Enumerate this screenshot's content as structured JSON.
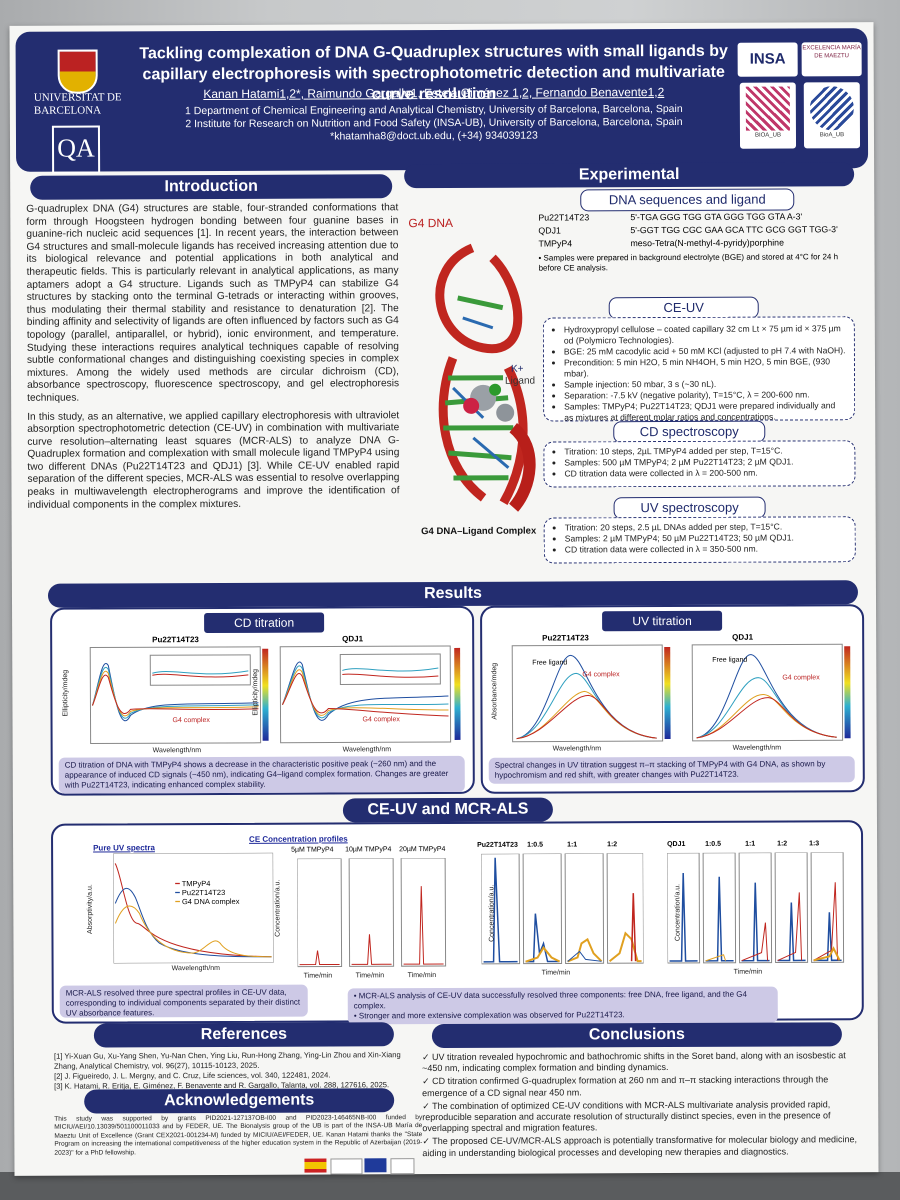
{
  "header": {
    "university": "UNIVERSITAT DE BARCELONA",
    "title": "Tackling complexation of DNA G-Quadruplex structures with small ligands by capillary electrophoresis with spectrophotometric detection and multivariate curve resolution",
    "authors": "Kanan Hatami1,2*, Raimundo Gargallo1, Estela Giménez 1,2, Fernando Benavente1,2",
    "affiliation1": "1 Department of Chemical Engineering and Analytical Chemistry, University of Barcelona, Barcelona, Spain",
    "affiliation2": "2 Institute for Research on Nutrition and Food Safety (INSA-UB), University of Barcelona, Barcelona, Spain",
    "contact": "*khatamha8@doct.ub.edu, (+34) 934039123",
    "logo_insa": "INSA",
    "logo_maeztu": "EXCELENCIA MARÍA DE MAEZTU",
    "qr1": "BIOA_UB",
    "qr2": "BioA_UB"
  },
  "intro": {
    "title": "Introduction",
    "p1": "G-quadruplex DNA (G4) structures are stable, four-stranded conformations that form through Hoogsteen hydrogen bonding between four guanine bases in guanine-rich nucleic acid sequences [1]. In recent years, the interaction between G4 structures and small-molecule ligands has received increasing attention due to its biological relevance and potential applications in both analytical and therapeutic fields. This is particularly relevant in analytical applications, as many aptamers adopt a G4 structure. Ligands such as TMPyP4 can stabilize G4 structures by stacking onto the terminal G-tetrads or interacting within grooves, thus modulating their thermal stability and resistance to denaturation [2]. The binding affinity and selectivity of ligands are often influenced by factors such as G4 topology (parallel, antiparallel, or hybrid), ionic environment, and temperature. Studying these interactions requires analytical techniques capable of resolving subtle conformational changes and distinguishing coexisting species in complex mixtures. Among the widely used methods are circular dichroism (CD), absorbance spectroscopy, fluorescence spectroscopy, and gel electrophoresis techniques.",
    "p2": "In this study, as an alternative, we applied capillary electrophoresis with ultraviolet absorption spectrophotometric detection (CE-UV) in combination with multivariate curve resolution–alternating least squares (MCR-ALS) to analyze DNA G-Quadruplex formation and complexation with small molecule ligand TMPyP4 using two different DNAs (Pu22T14T23 and QDJ1) [3]. While CE-UV enabled rapid separation of the different species, MCR-ALS was essential to resolve overlapping peaks in multiwavelength electropherograms and improve the identification of individual components in the complex mixtures.",
    "g4_label": "G4 DNA",
    "k_label": "K+",
    "ligand_label": "Ligand",
    "complex_caption": "G4 DNA–Ligand Complex"
  },
  "experimental": {
    "title": "Experimental",
    "dna": {
      "title": "DNA sequences and ligand",
      "rows": [
        {
          "name": "Pu22T14T23",
          "seq": "5'-TGA GGG TGG GTA GGG TGG GTA A-3'"
        },
        {
          "name": "QDJ1",
          "seq": "5'-GGT TGG CGC GAA GCA TTC GCG GGT TGG-3'"
        },
        {
          "name": "TMPyP4",
          "seq": "meso-Tetra(N-methyl-4-pyridy)porphine"
        }
      ],
      "note": "Samples were prepared in background electrolyte (BGE) and stored at 4°C for 24 h before CE analysis."
    },
    "ceuv": {
      "title": "CE-UV",
      "items": [
        "Hydroxypropyl cellulose – coated capillary 32 cm Lt × 75 µm id × 375 µm od (Polymicro Technologies).",
        "BGE: 25 mM cacodylic acid + 50 mM KCl (adjusted to pH 7.4 with NaOH).",
        "Precondition: 5 min H2O, 5 min NH4OH, 5 min H2O, 5 min BGE, (930 mbar).",
        "Sample injection: 50 mbar, 3 s (~30 nL).",
        "Separation: -7.5 kV (negative polarity), T=15°C, λ = 200-600 nm.",
        "Samples: TMPyP4; Pu22T14T23; QDJ1 were prepared individually and as mixtures at different molar ratios and concentrations."
      ]
    },
    "cd": {
      "title": "CD spectroscopy",
      "items": [
        "Titration: 10 steps, 2µL TMPyP4 added per step, T=15°C.",
        "Samples: 500 µM TMPyP4; 2 µM Pu22T14T23; 2 µM QDJ1.",
        "CD titration data were collected in λ = 200-500 nm."
      ]
    },
    "uv": {
      "title": "UV spectroscopy",
      "items": [
        "Titration: 20 steps, 2.5 µL DNAs added per step, T=15°C.",
        "Samples: 2 µM TMPyP4; 50 µM Pu22T14T23; 50 µM QDJ1.",
        "CD titration data were collected in λ = 350-500 nm."
      ]
    }
  },
  "results": {
    "title": "Results",
    "cd_title": "CD titration",
    "cd_plot1": "Pu22T14T23",
    "cd_plot2": "QDJ1",
    "cd_ylabel": "Ellipticity/mdeg",
    "cd_xlabel": "Wavelength/nm",
    "cd_complex": "G4 complex",
    "cd_caption": "CD titration of DNA with TMPyP4 shows a decrease in the characteristic positive peak (~260 nm) and the appearance of induced CD signals (~450 nm), indicating G4–ligand complex formation. Changes are greater with Pu22T14T23, indicating enhanced complex stability.",
    "uv_title": "UV titration",
    "uv_plot1": "Pu22T14T23",
    "uv_plot2": "QDJ1",
    "uv_ylabel": "Absorbance/mdeg",
    "uv_xlabel": "Wavelength/nm",
    "uv_free": "Free ligand",
    "uv_complex": "G4 complex",
    "uv_caption": "Spectral changes in UV titration suggest π–π stacking of TMPyP4 with G4 DNA, as shown by hypochromism and red shift, with greater changes with Pu22T14T23.",
    "ceuv_title": "CE-UV and MCR-ALS",
    "pure_title": "Pure UV spectra",
    "pure_ylabel": "Absorptivity/a.u.",
    "pure_xlabel": "Wavelength/nm",
    "legend": [
      "TMPyP4",
      "Pu22T14T23",
      "G4 DNA complex"
    ],
    "conc_title": "CE Concentration profiles",
    "conc_labels": [
      "5µM TMPyP4",
      "10µM TMPyP4",
      "20µM TMPyP4"
    ],
    "conc_ylabel": "Concentration/a.u.",
    "time_label": "Time/min",
    "pu_labels": [
      "Pu22T14T23",
      "1:0.5",
      "1:1",
      "1:2"
    ],
    "qdj_labels": [
      "QDJ1",
      "1:0.5",
      "1:1",
      "1:2",
      "1:3"
    ],
    "ce_caption1": "MCR-ALS resolved three pure spectral profiles in CE-UV data, corresponding to individual components separated by their distinct UV absorbance features.",
    "ce_caption2a": "MCR-ALS analysis of CE-UV data successfully resolved three components: free DNA, free ligand, and the G4 complex.",
    "ce_caption2b": "Stronger and more extensive complexation was observed for Pu22T14T23."
  },
  "references": {
    "title": "References",
    "items": [
      "[1] Yi-Xuan Gu, Xu-Yang Shen, Yu-Nan Chen, Ying Liu, Run-Hong Zhang, Ying-Lin Zhou and Xin-Xiang Zhang, Analytical Chemistry, vol. 96(27), 10115-10123, 2025.",
      "[2] J. Figueiredo, J. L. Mergny, and C. Cruz, Life sciences, vol. 340, 122481, 2024.",
      "[3] K. Hatami, R. Eritja, E. Giménez, F. Benavente and R. Gargallo, Talanta, vol. 288, 127616, 2025."
    ]
  },
  "acknowledgements": {
    "title": "Acknowledgements",
    "text": "This study was supported by grants PID2021-127137OB-I00 and PID2023-146465NB-I00 funded by MICIU/AEI/10.13039/501100011033 and by FEDER, UE. The Bionalysis group of the UB is part of the INSA-UB María de Maeztu Unit of Excellence (Grant CEX2021-001234-M) funded by MICIU/AEI/FEDER, UE. Kanan Hatami thanks the \"State Program on increasing the international competitiveness of the higher education system in the Republic of Azerbaijan (2019-2023)\" for a PhD fellowship."
  },
  "conclusions": {
    "title": "Conclusions",
    "items": [
      "UV titration revealed hypochromic and bathochromic shifts in the Soret band, along with an isosbestic at ~450 nm, indicating complex formation and binding dynamics.",
      "CD titration confirmed G-quadruplex formation at 260 nm and π–π stacking interactions through the emergence of a CD signal near 450 nm.",
      "The combination of optimized CE-UV conditions with MCR-ALS multivariate analysis provided rapid, reproducible separation and accurate resolution of structurally distinct species, even in the presence of overlapping spectral and migration features.",
      "The proposed CE-UV/MCR-ALS approach is potentially transformative for molecular biology and medicine, aiding in understanding biological processes and developing new therapies and diagnostics."
    ]
  },
  "colors": {
    "navy": "#232d70",
    "caption": "#cdc9e6",
    "complex_red": "#b22222"
  }
}
